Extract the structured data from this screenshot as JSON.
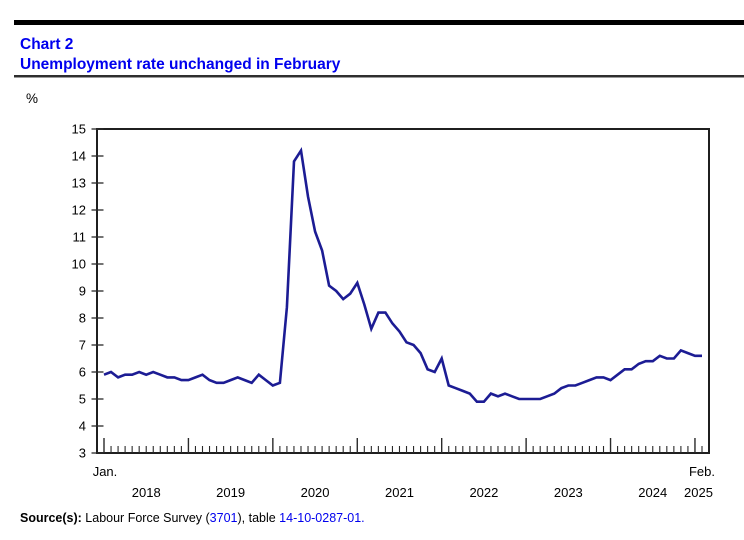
{
  "header": {
    "chart_label": "Chart 2",
    "title": "Unemployment rate unchanged in February"
  },
  "y_axis": {
    "unit_label": "%",
    "tick_labels": [
      "3",
      "4",
      "5",
      "6",
      "7",
      "8",
      "9",
      "10",
      "11",
      "12",
      "13",
      "14",
      "15"
    ]
  },
  "x_axis": {
    "start_label": "Jan.",
    "end_label": "Feb.",
    "year_labels": [
      "2018",
      "2019",
      "2020",
      "2021",
      "2022",
      "2023",
      "2024",
      "2025"
    ]
  },
  "source": {
    "prefix": "Source(s):",
    "segment1": " Labour Force Survey (",
    "link1": "3701",
    "segment2": "), table ",
    "link2": "14-10-0287-01."
  },
  "colors": {
    "line": "#1c1c94",
    "title_blue": "#0000ee",
    "link_blue": "#0000ee",
    "axis": "#1f1f1f",
    "tick": "#2a2a2a"
  },
  "chart_data": {
    "type": "line",
    "title": "Unemployment rate unchanged in February",
    "ylabel": "%",
    "ylim": [
      3,
      15
    ],
    "y_ticks": [
      3,
      4,
      5,
      6,
      7,
      8,
      9,
      10,
      11,
      12,
      13,
      14,
      15
    ],
    "frequency": "monthly",
    "start": "2018-01",
    "end": "2025-02",
    "grid": false,
    "legend": "none",
    "series": [
      {
        "name": "Unemployment rate (%)",
        "values": [
          5.9,
          6.0,
          5.8,
          5.9,
          5.9,
          6.0,
          5.9,
          6.0,
          5.9,
          5.8,
          5.8,
          5.7,
          5.7,
          5.8,
          5.9,
          5.7,
          5.6,
          5.6,
          5.7,
          5.8,
          5.7,
          5.6,
          5.9,
          5.7,
          5.5,
          5.6,
          8.4,
          13.8,
          14.2,
          12.5,
          11.2,
          10.5,
          9.2,
          9.0,
          8.7,
          8.9,
          9.3,
          8.5,
          7.6,
          8.2,
          8.2,
          7.8,
          7.5,
          7.1,
          7.0,
          6.7,
          6.1,
          6.0,
          6.5,
          5.5,
          5.4,
          5.3,
          5.2,
          4.9,
          4.9,
          5.2,
          5.1,
          5.2,
          5.1,
          5.0,
          5.0,
          5.0,
          5.0,
          5.1,
          5.2,
          5.4,
          5.5,
          5.5,
          5.6,
          5.7,
          5.8,
          5.8,
          5.7,
          5.9,
          6.1,
          6.1,
          6.3,
          6.4,
          6.4,
          6.6,
          6.5,
          6.5,
          6.8,
          6.7,
          6.6,
          6.6
        ]
      }
    ]
  }
}
